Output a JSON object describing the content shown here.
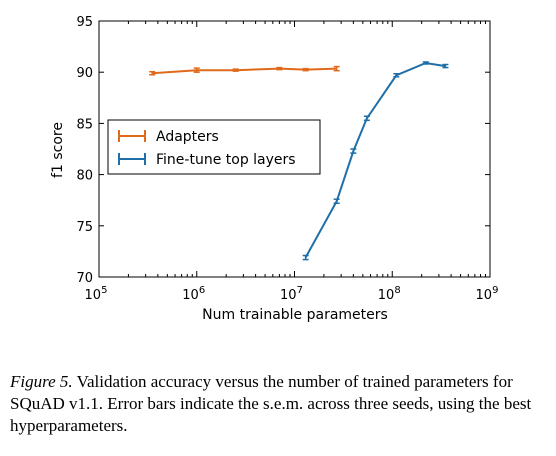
{
  "chart_data": {
    "type": "line",
    "xlabel": "Num trainable parameters",
    "ylabel": "f1 score",
    "xscale": "log",
    "xlim": [
      100000,
      1000000000
    ],
    "ylim": [
      70,
      95
    ],
    "yticks": [
      "70",
      "75",
      "80",
      "85",
      "90",
      "95"
    ],
    "xticks": [
      {
        "value": 100000,
        "base": "10",
        "exp": "5"
      },
      {
        "value": 1000000,
        "base": "10",
        "exp": "6"
      },
      {
        "value": 10000000,
        "base": "10",
        "exp": "7"
      },
      {
        "value": 100000000,
        "base": "10",
        "exp": "8"
      },
      {
        "value": 1000000000,
        "base": "10",
        "exp": "9"
      }
    ],
    "legend_position": "center-left",
    "series": [
      {
        "name": "Adapters",
        "color": "#e06a1a",
        "x": [
          350000,
          1000000,
          2500000,
          7000000,
          13000000,
          27000000
        ],
        "y": [
          89.9,
          90.2,
          90.2,
          90.35,
          90.25,
          90.35
        ],
        "err": [
          0.15,
          0.2,
          0.1,
          0.1,
          0.1,
          0.2
        ]
      },
      {
        "name": "Fine-tune top layers",
        "color": "#1f6fa8",
        "x": [
          13000000,
          27000000,
          40000000,
          55000000,
          110000000,
          220000000,
          350000000
        ],
        "y": [
          71.9,
          77.4,
          82.3,
          85.5,
          89.7,
          90.9,
          90.6
        ],
        "err": [
          0.2,
          0.2,
          0.2,
          0.2,
          0.15,
          0.1,
          0.15
        ]
      }
    ]
  },
  "caption": {
    "figure_label": "Figure 5.",
    "text": "Validation accuracy versus the number of trained parameters for SQuAD v1.1. Error bars indicate the s.e.m. across three seeds, using the best hyperparameters."
  }
}
